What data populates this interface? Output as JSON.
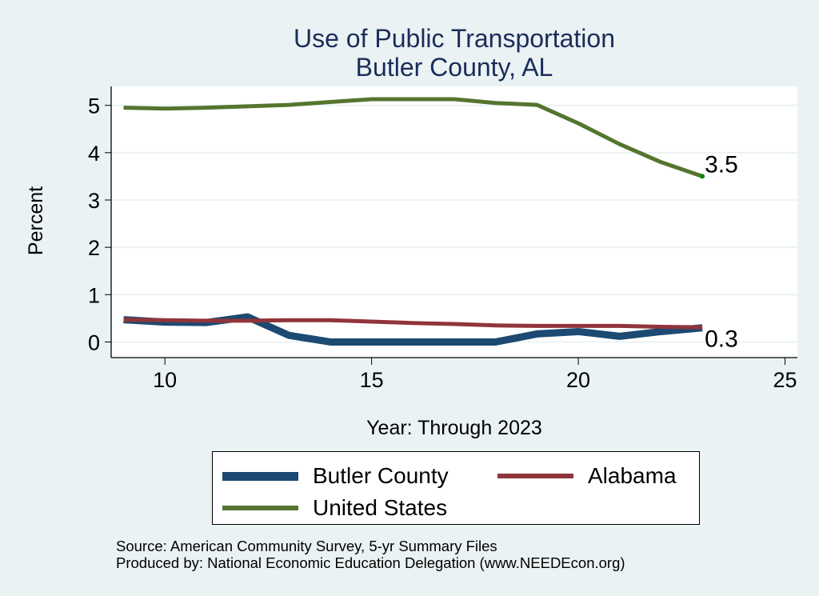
{
  "chart_data": {
    "type": "line",
    "title": "Use of Public Transportation",
    "subtitle": "Butler County, AL",
    "xlabel": "Year: Through 2023",
    "ylabel": "Percent",
    "xlim": [
      8.7,
      25.3
    ],
    "ylim": [
      -0.33,
      5.4
    ],
    "x_ticks": [
      10,
      15,
      20,
      25
    ],
    "y_ticks": [
      0,
      1,
      2,
      3,
      4,
      5
    ],
    "grid": true,
    "legend_position": "bottom",
    "x": [
      9,
      10,
      11,
      12,
      13,
      14,
      15,
      16,
      17,
      18,
      19,
      20,
      21,
      22,
      23
    ],
    "series": [
      {
        "name": "Butler County",
        "color": "#1c4a72",
        "values": [
          0.47,
          0.42,
          0.41,
          0.53,
          0.14,
          0.0,
          0.0,
          0.0,
          0.0,
          0.0,
          0.17,
          0.22,
          0.12,
          0.22,
          0.3
        ]
      },
      {
        "name": "Alabama",
        "color": "#90353b",
        "values": [
          0.47,
          0.46,
          0.45,
          0.45,
          0.46,
          0.46,
          0.43,
          0.4,
          0.38,
          0.35,
          0.34,
          0.34,
          0.34,
          0.32,
          0.31
        ]
      },
      {
        "name": "United States",
        "color": "#55752f",
        "values": [
          4.95,
          4.93,
          4.95,
          4.98,
          5.01,
          5.07,
          5.13,
          5.13,
          5.13,
          5.05,
          5.01,
          4.62,
          4.18,
          3.8,
          3.5
        ]
      }
    ],
    "annotations": [
      {
        "text": "3.5",
        "x": 23,
        "y": 3.5,
        "series": "United States"
      },
      {
        "text": "0.3",
        "x": 23,
        "y": 0.3,
        "series": "Butler County"
      }
    ],
    "end_marker_color": "#008a00"
  },
  "legend": {
    "items": [
      "Butler County",
      "Alabama",
      "United States"
    ]
  },
  "footer": {
    "source": "Source: American Community Survey, 5-yr Summary Files",
    "produced_by": "Produced by: National Economic Education Delegation (www.NEEDEcon.org)"
  }
}
